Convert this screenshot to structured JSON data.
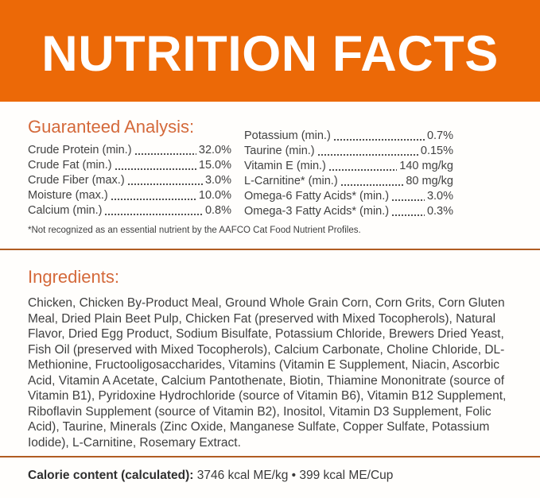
{
  "header": {
    "title": "NUTRITION FACTS"
  },
  "guaranteed_analysis": {
    "heading": "Guaranteed Analysis:",
    "left_column": [
      {
        "label": "Crude Protein (min.)",
        "value": "32.0%"
      },
      {
        "label": "Crude Fat (min.)",
        "value": "15.0%"
      },
      {
        "label": "Crude Fiber (max.)",
        "value": "3.0%"
      },
      {
        "label": "Moisture (max.)",
        "value": "10.0%"
      },
      {
        "label": "Calcium (min.)",
        "value": "0.8%"
      }
    ],
    "right_column": [
      {
        "label": "Potassium (min.)",
        "value": "0.7%"
      },
      {
        "label": "Taurine (min.)",
        "value": "0.15%"
      },
      {
        "label": "Vitamin E (min.)",
        "value": "140 mg/kg"
      },
      {
        "label": "L-Carnitine* (min.)",
        "value": "80 mg/kg"
      },
      {
        "label": "Omega-6 Fatty Acids* (min.)",
        "value": "3.0%"
      },
      {
        "label": "Omega-3 Fatty Acids* (min.)",
        "value": "0.3%"
      }
    ],
    "footnote": "*Not recognized as an essential nutrient by the AAFCO Cat Food Nutrient Profiles."
  },
  "ingredients": {
    "heading": "Ingredients:",
    "text": "Chicken, Chicken By-Product Meal, Ground Whole Grain Corn, Corn Grits, Corn Gluten Meal, Dried Plain Beet Pulp, Chicken Fat (preserved with Mixed Tocopherols), Natural Flavor, Dried Egg Product, Sodium Bisulfate, Potassium Chloride, Brewers Dried Yeast, Fish Oil (preserved with Mixed Tocopherols), Calcium Carbonate, Choline Chloride, DL-Methionine, Fructooligosaccharides, Vitamins (Vitamin E Supplement, Niacin, Ascorbic Acid, Vitamin A Acetate, Calcium Pantothenate, Biotin, Thiamine Mononitrate (source of Vitamin B1), Pyridoxine Hydrochloride (source of Vitamin B6), Vitamin B12 Supplement, Riboflavin Supplement (source of Vitamin B2), Inositol, Vitamin D3 Supplement, Folic Acid), Taurine, Minerals (Zinc Oxide, Manganese Sulfate, Copper Sulfate, Potassium Iodide), L-Carnitine, Rosemary Extract."
  },
  "calorie_content": {
    "label": "Calorie content (calculated):",
    "value": "3746 kcal ME/kg • 399 kcal ME/Cup"
  },
  "colors": {
    "band_orange": "#ec6907",
    "heading_orange": "#d4693a",
    "divider_orange": "#b05c22",
    "body_text": "#3f3f3f",
    "title_text": "#ffffff"
  }
}
